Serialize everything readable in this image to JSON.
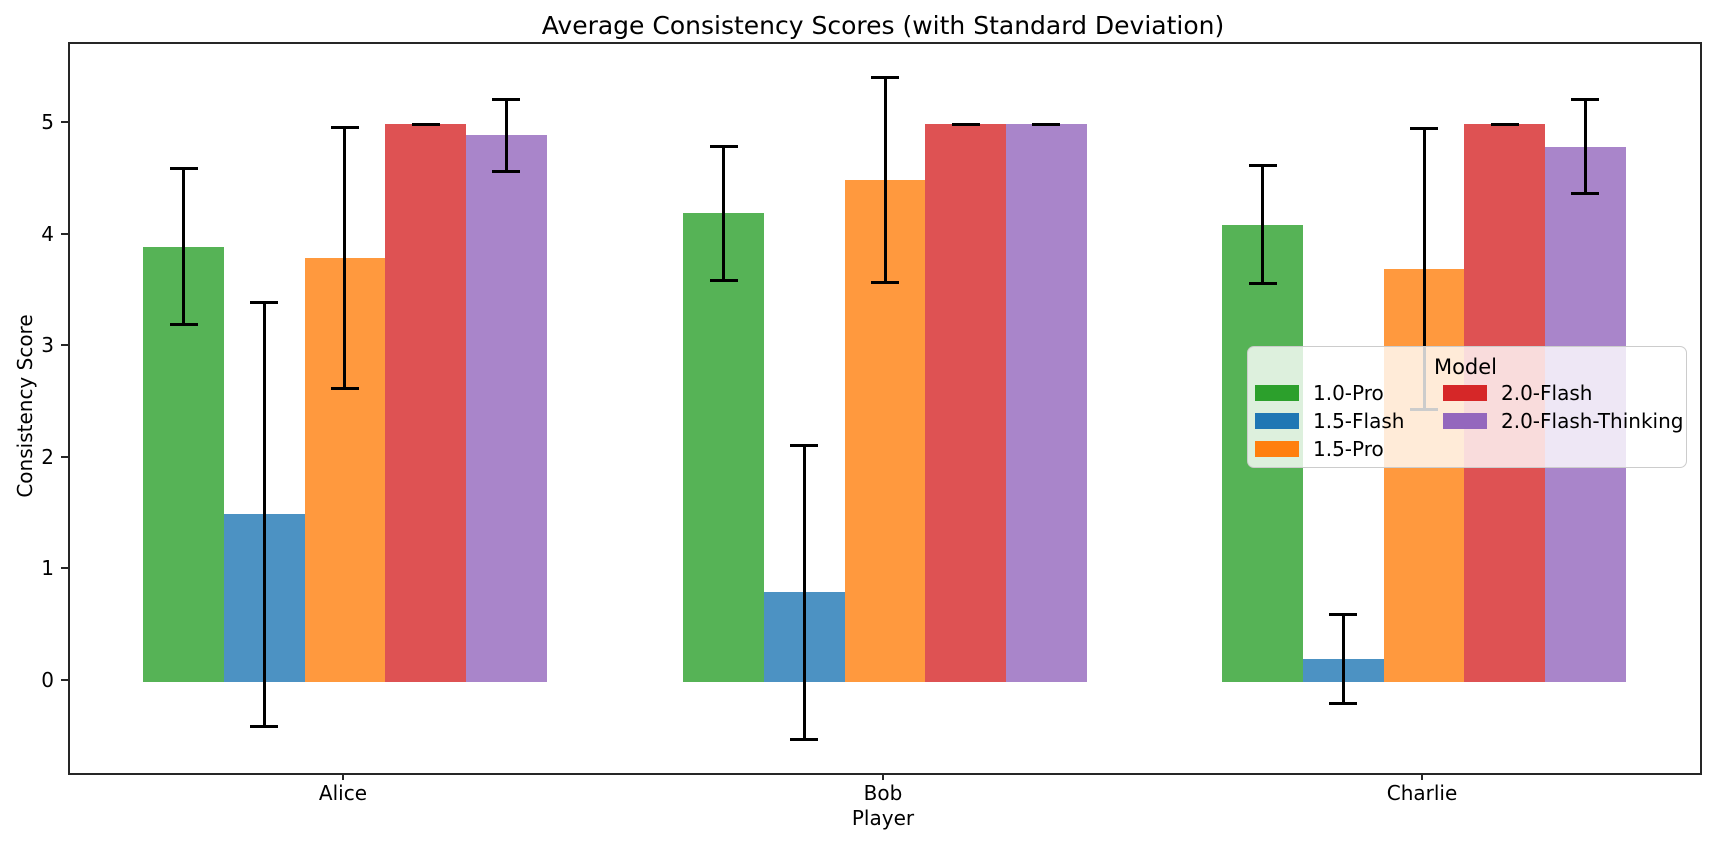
{
  "chart_data": {
    "type": "bar",
    "title": "Average Consistency Scores (with Standard Deviation)",
    "xlabel": "Player",
    "ylabel": "Consistency Score",
    "categories": [
      "Alice",
      "Bob",
      "Charlie"
    ],
    "series": [
      {
        "name": "1.0-Pro",
        "color": "#2ca02c",
        "values": [
          3.9,
          4.2,
          4.1
        ],
        "std": [
          0.7,
          0.6,
          0.53
        ]
      },
      {
        "name": "1.5-Flash",
        "color": "#1f77b4",
        "values": [
          1.5,
          0.8,
          0.2
        ],
        "std": [
          1.9,
          1.32,
          0.4
        ]
      },
      {
        "name": "1.5-Pro",
        "color": "#ff7f0e",
        "values": [
          3.8,
          4.5,
          3.7
        ],
        "std": [
          1.17,
          0.92,
          1.26
        ]
      },
      {
        "name": "2.0-Flash",
        "color": "#d62728",
        "values": [
          5.0,
          5.0,
          5.0
        ],
        "std": [
          0.0,
          0.0,
          0.0
        ]
      },
      {
        "name": "2.0-Flash-Thinking",
        "color": "#9467bd",
        "values": [
          4.9,
          5.0,
          4.8
        ],
        "std": [
          0.32,
          0.0,
          0.42
        ]
      }
    ],
    "bar_alpha": 0.8,
    "error_bar_color": "#000000",
    "yticks": [
      0,
      1,
      2,
      3,
      4,
      5
    ],
    "ylim": [
      -0.82,
      5.72
    ],
    "grid": false,
    "legend": {
      "title": "Model",
      "position": "center-right",
      "columns": 2
    }
  }
}
